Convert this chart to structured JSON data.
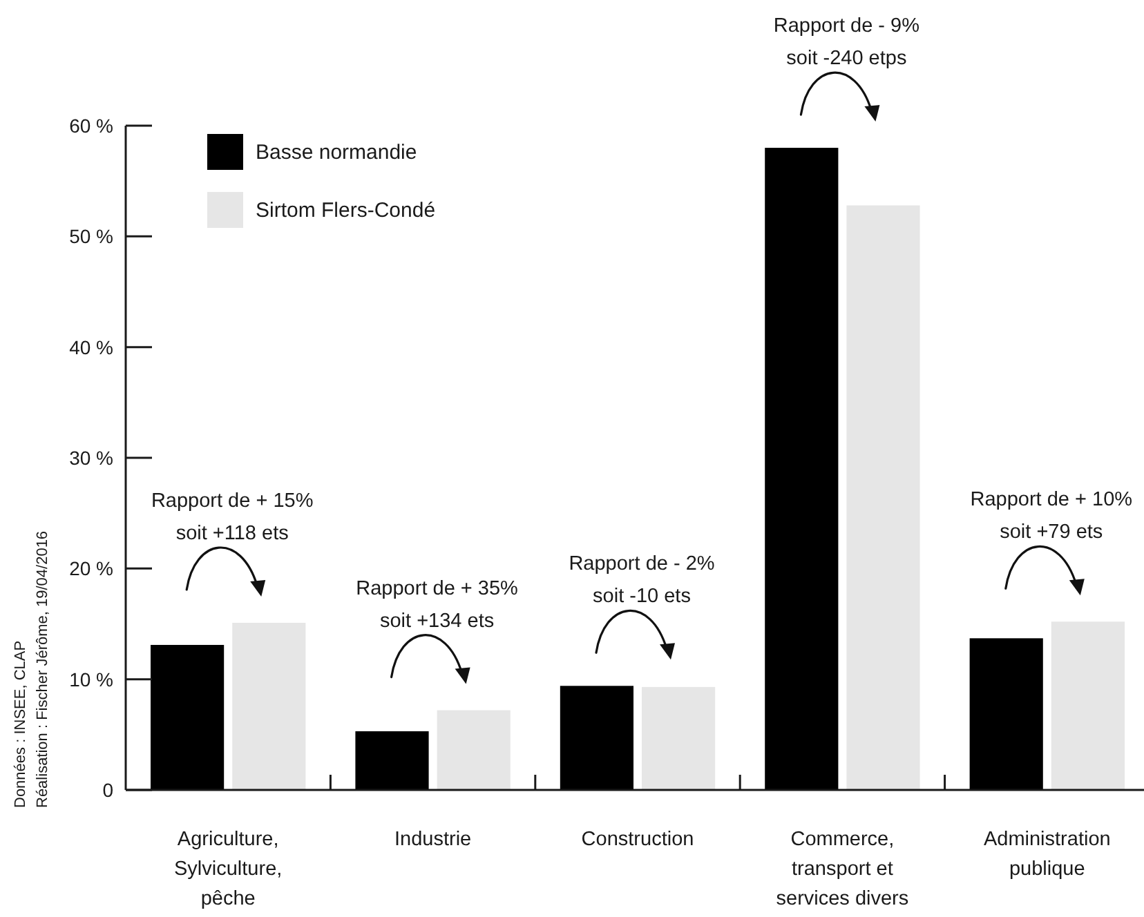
{
  "chart_data": {
    "type": "bar",
    "categories": [
      "Agriculture,\nSylviculture,\npêche",
      "Industrie",
      "Construction",
      "Commerce,\ntransport et\nservices divers",
      "Administration\npublique"
    ],
    "series": [
      {
        "name": "Basse normandie",
        "color": "#000000",
        "values": [
          13.1,
          5.3,
          9.4,
          58.0,
          13.7
        ]
      },
      {
        "name": "Sirtom Flers-Condé",
        "color": "#e6e6e6",
        "values": [
          15.1,
          7.2,
          9.3,
          52.8,
          15.2
        ]
      }
    ],
    "ylim": [
      0,
      60
    ],
    "yticks": [
      0,
      {
        "value": 10,
        "label": "10 %"
      },
      {
        "value": 20,
        "label": "20 %"
      },
      {
        "value": 30,
        "label": "30 %"
      },
      {
        "value": 40,
        "label": "40 %"
      },
      {
        "value": 50,
        "label": "50 %"
      },
      {
        "value": 60,
        "label": "60 %"
      }
    ],
    "legend": "top left",
    "grid": false,
    "annotations": [
      "Rapport de + 15%\nsoit +118 ets",
      "Rapport de + 35%\nsoit +134 ets",
      "Rapport de - 2%\nsoit -10 ets",
      "Rapport de - 9%\nsoit -240 etps",
      "Rapport de + 10%\nsoit +79 ets",
      "Données : INSEE, CLAP\nRéalisation : Fischer Jérôme, 19/04/2016"
    ]
  }
}
